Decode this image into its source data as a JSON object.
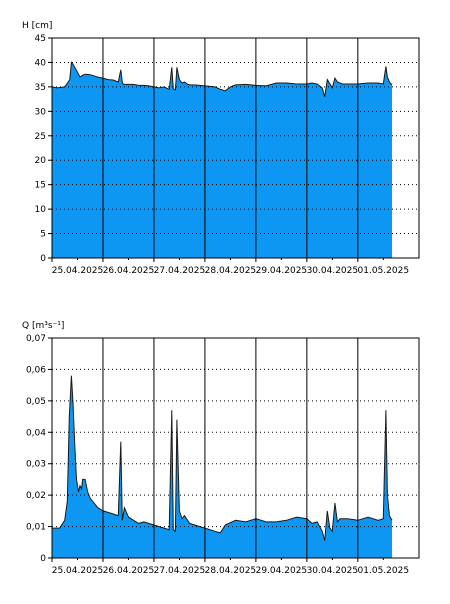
{
  "colors": {
    "fill": "#0d97f2",
    "line": "#1a1a1a",
    "grid": "#000000",
    "background": "#ffffff"
  },
  "chart_data": [
    {
      "type": "area",
      "ylabel": "H [cm]",
      "ylim": [
        0,
        45
      ],
      "yticks": [
        "0",
        "5",
        "10",
        "15",
        "20",
        "25",
        "30",
        "35",
        "40",
        "45"
      ],
      "x_dates": [
        "25.04.2025",
        "26.04.2025",
        "27.04.2025",
        "28.04.2025",
        "29.04.2025",
        "30.04.2025",
        "01.05.2025"
      ],
      "xlim_days": [
        0,
        7.2
      ],
      "grid": "dotted horizontal, solid vertical at day boundaries",
      "series": [
        {
          "x": [
            0.0,
            0.1,
            0.25,
            0.35,
            0.38,
            0.42,
            0.5,
            0.55,
            0.6,
            0.65,
            0.75,
            0.9,
            1.0,
            1.1,
            1.2,
            1.3,
            1.35,
            1.38,
            1.4,
            1.5,
            1.6,
            1.7,
            1.8,
            1.9,
            2.0,
            2.1,
            2.2,
            2.3,
            2.35,
            2.38,
            2.42,
            2.45,
            2.5,
            2.55,
            2.6,
            2.65,
            2.7,
            2.8,
            3.0,
            3.2,
            3.3,
            3.4,
            3.5,
            3.6,
            3.8,
            4.0,
            4.2,
            4.4,
            4.6,
            4.8,
            5.0,
            5.1,
            5.2,
            5.3,
            5.35,
            5.4,
            5.5,
            5.55,
            5.6,
            5.7,
            5.8,
            5.9,
            6.0,
            6.2,
            6.4,
            6.5,
            6.55,
            6.58,
            6.62,
            6.65,
            6.67
          ],
          "y": [
            35,
            34.8,
            35,
            36.5,
            40,
            39.5,
            38,
            37,
            37.4,
            37.6,
            37.5,
            37,
            36.8,
            36.5,
            36.4,
            36,
            38.5,
            36,
            35.5,
            35.5,
            35.5,
            35.3,
            35.3,
            35.2,
            35,
            34.8,
            35,
            34.5,
            39,
            34.6,
            34.4,
            39,
            36.5,
            35.8,
            36,
            35.6,
            35.4,
            35.4,
            35.2,
            35,
            34.5,
            34.2,
            35,
            35.4,
            35.5,
            35.3,
            35.2,
            35.8,
            35.8,
            35.6,
            35.6,
            35.8,
            35.6,
            34.8,
            33,
            36.5,
            34.8,
            36.8,
            36,
            35.6,
            35.6,
            35.6,
            35.6,
            35.8,
            35.8,
            35.6,
            39.2,
            37,
            36,
            35.6,
            35.5
          ]
        }
      ]
    },
    {
      "type": "area",
      "ylabel": "Q [m³s⁻¹]",
      "ylim": [
        0,
        0.07
      ],
      "yticks": [
        "0",
        "0,01",
        "0,02",
        "0,03",
        "0,04",
        "0,05",
        "0,06",
        "0,07"
      ],
      "x_dates": [
        "25.04.2025",
        "26.04.2025",
        "27.04.2025",
        "28.04.2025",
        "29.04.2025",
        "30.04.2025",
        "01.05.2025"
      ],
      "xlim_days": [
        0,
        7.2
      ],
      "grid": "dotted horizontal, solid vertical at day boundaries",
      "series": [
        {
          "x": [
            0.0,
            0.15,
            0.25,
            0.3,
            0.34,
            0.38,
            0.41,
            0.45,
            0.48,
            0.52,
            0.55,
            0.58,
            0.6,
            0.65,
            0.7,
            0.75,
            0.8,
            0.85,
            0.9,
            1.0,
            1.1,
            1.2,
            1.3,
            1.35,
            1.38,
            1.42,
            1.5,
            1.6,
            1.7,
            1.8,
            1.9,
            2.0,
            2.2,
            2.3,
            2.35,
            2.38,
            2.42,
            2.45,
            2.5,
            2.55,
            2.6,
            2.7,
            2.8,
            3.0,
            3.2,
            3.3,
            3.4,
            3.6,
            3.8,
            4.0,
            4.2,
            4.4,
            4.6,
            4.8,
            5.0,
            5.1,
            5.2,
            5.3,
            5.35,
            5.4,
            5.45,
            5.5,
            5.55,
            5.6,
            5.65,
            5.7,
            5.8,
            6.0,
            6.2,
            6.4,
            6.5,
            6.55,
            6.58,
            6.62,
            6.67
          ],
          "y": [
            0.0095,
            0.0095,
            0.012,
            0.018,
            0.045,
            0.058,
            0.05,
            0.035,
            0.025,
            0.021,
            0.023,
            0.022,
            0.025,
            0.025,
            0.021,
            0.019,
            0.018,
            0.017,
            0.016,
            0.015,
            0.0145,
            0.014,
            0.0135,
            0.037,
            0.012,
            0.016,
            0.013,
            0.012,
            0.011,
            0.0115,
            0.011,
            0.0105,
            0.0095,
            0.009,
            0.047,
            0.009,
            0.0085,
            0.044,
            0.015,
            0.0125,
            0.0135,
            0.011,
            0.0105,
            0.0095,
            0.0085,
            0.008,
            0.0105,
            0.012,
            0.0115,
            0.0125,
            0.0115,
            0.0115,
            0.012,
            0.013,
            0.0125,
            0.011,
            0.0115,
            0.0085,
            0.0055,
            0.015,
            0.0095,
            0.0085,
            0.0175,
            0.0115,
            0.0125,
            0.0125,
            0.0125,
            0.012,
            0.013,
            0.012,
            0.0125,
            0.047,
            0.02,
            0.0135,
            0.012
          ]
        }
      ]
    }
  ]
}
